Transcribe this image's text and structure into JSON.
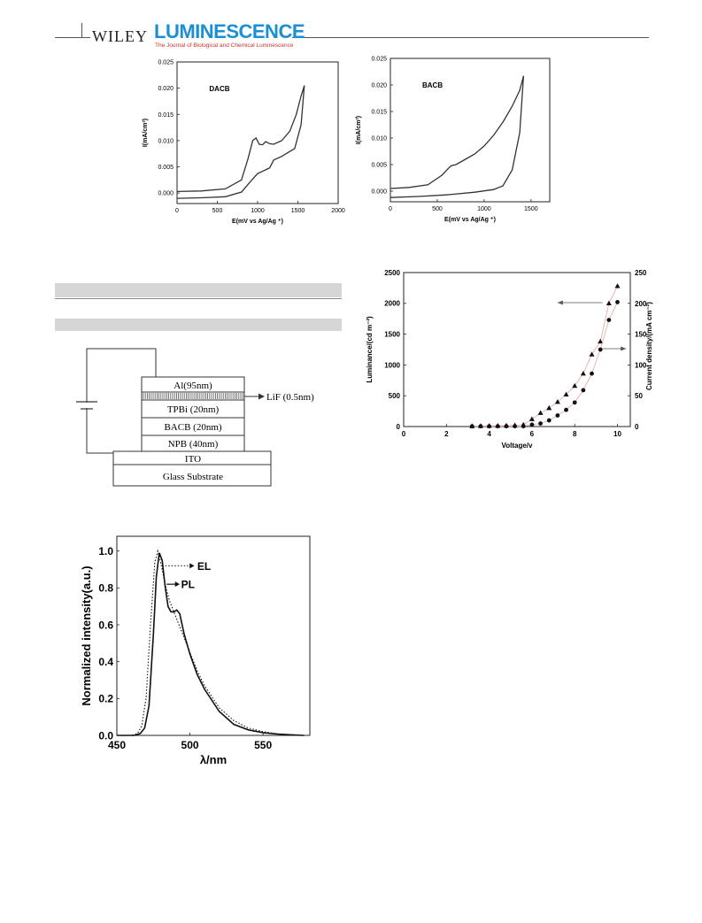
{
  "header": {
    "publisher": "WILEY",
    "journal": "LUMINESCENCE",
    "journal_subtitle": "The Journal of Biological and Chemical Luminescence"
  },
  "device": {
    "layers": [
      "Al(95nm)",
      "",
      "TPBi (20nm)",
      "BACB (20nm)",
      "NPB  (40nm)",
      "ITO",
      "Glass Substrate"
    ],
    "lif_label": "LiF (0.5nm)"
  },
  "chart_data": [
    {
      "type": "line",
      "label": "DACB",
      "xlabel": "E(mV vs Ag/Ag ⁺)",
      "ylabel": "I(mA/cm²)",
      "xlim": [
        0,
        2000
      ],
      "ylim": [
        -0.002,
        0.025
      ],
      "xticks": [
        "0",
        "500",
        "1000",
        "1500",
        "2000"
      ],
      "yticks": [
        "0.000",
        "0.005",
        "0.010",
        "0.015",
        "0.020",
        "0.025"
      ],
      "series": [
        {
          "x": [
            0,
            300,
            600,
            800,
            880,
            940,
            980,
            1020,
            1060,
            1100,
            1150,
            1200,
            1300,
            1400,
            1480,
            1540,
            1580
          ],
          "y": [
            0.0003,
            0.0004,
            0.0008,
            0.0025,
            0.0065,
            0.01,
            0.0105,
            0.0093,
            0.0092,
            0.0098,
            0.0094,
            0.0093,
            0.01,
            0.0118,
            0.015,
            0.0185,
            0.0205
          ]
        },
        {
          "x": [
            1580,
            1540,
            1460,
            1300,
            1200,
            1150,
            1000,
            900,
            800,
            600,
            300,
            0
          ],
          "y": [
            0.0205,
            0.013,
            0.0085,
            0.007,
            0.0063,
            0.0048,
            0.0037,
            0.002,
            0.0002,
            -0.0007,
            -0.0009,
            -0.001
          ]
        }
      ]
    },
    {
      "type": "line",
      "label": "BACB",
      "xlabel": "E(mV vs Ag/Ag ⁺)",
      "ylabel": "I(mA/cm²)",
      "xlim": [
        0,
        1700
      ],
      "ylim": [
        -0.002,
        0.025
      ],
      "xticks": [
        "0",
        "500",
        "1000",
        "1500"
      ],
      "yticks": [
        "0.000",
        "0.005",
        "0.010",
        "0.015",
        "0.020",
        "0.025"
      ],
      "series": [
        {
          "x": [
            0,
            200,
            400,
            550,
            620,
            650,
            700,
            800,
            900,
            1000,
            1100,
            1200,
            1300,
            1380,
            1420
          ],
          "y": [
            0.0005,
            0.0007,
            0.0012,
            0.003,
            0.0043,
            0.0048,
            0.005,
            0.006,
            0.007,
            0.0085,
            0.0105,
            0.013,
            0.016,
            0.019,
            0.0217
          ]
        },
        {
          "x": [
            1420,
            1380,
            1300,
            1200,
            1100,
            900,
            600,
            300,
            0
          ],
          "y": [
            0.0217,
            0.011,
            0.004,
            0.001,
            0.0003,
            -0.0002,
            -0.0007,
            -0.001,
            -0.0012
          ]
        }
      ]
    },
    {
      "type": "scatter",
      "xlabel": "Voltage/v",
      "ylabel": "Luminance/(cd m⁻²)",
      "ylabel_right": "Current density/(mA cm⁻²)",
      "xlim": [
        0,
        10.6
      ],
      "ylim": [
        0,
        2500
      ],
      "ylim_right": [
        0,
        250
      ],
      "xticks": [
        "0",
        "2",
        "4",
        "6",
        "8",
        "10"
      ],
      "yticks": [
        "0",
        "500",
        "1000",
        "1500",
        "2000",
        "2500"
      ],
      "yticks_right": [
        "0",
        "50",
        "100",
        "150",
        "200",
        "250"
      ],
      "series": [
        {
          "marker": "triangle",
          "axis": "right",
          "x": [
            3.2,
            3.6,
            4.0,
            4.4,
            4.8,
            5.2,
            5.6,
            6.0,
            6.4,
            6.8,
            7.2,
            7.6,
            8.0,
            8.4,
            8.8,
            9.2,
            9.6,
            10.0
          ],
          "y": [
            0.5,
            0.8,
            1.0,
            1.2,
            1.5,
            2,
            3,
            12,
            22,
            30,
            40,
            52,
            66,
            86,
            117,
            138,
            200,
            228
          ]
        },
        {
          "marker": "circle",
          "axis": "left",
          "x": [
            3.2,
            3.6,
            4.0,
            4.4,
            4.8,
            5.2,
            5.6,
            6.0,
            6.4,
            6.8,
            7.2,
            7.6,
            8.0,
            8.4,
            8.8,
            9.2,
            9.6,
            10.0
          ],
          "y": [
            5,
            5,
            5,
            5,
            5,
            5,
            5,
            30,
            50,
            100,
            180,
            270,
            390,
            590,
            860,
            1250,
            1730,
            2020
          ]
        }
      ]
    },
    {
      "type": "line",
      "xlabel": "λ/nm",
      "ylabel": "Normalized intensity(a.u.)",
      "xlim": [
        450,
        582
      ],
      "ylim": [
        0,
        1.08
      ],
      "xticks": [
        "450",
        "500",
        "550"
      ],
      "yticks": [
        "0.0",
        "0.2",
        "0.4",
        "0.6",
        "0.8",
        "1.0"
      ],
      "series": [
        {
          "name": "PL",
          "style": "solid",
          "x": [
            450,
            462,
            466,
            469,
            472,
            475,
            477,
            479,
            481,
            483,
            485,
            487,
            489,
            491,
            493,
            496,
            500,
            505,
            510,
            520,
            530,
            540,
            550,
            560,
            570,
            578
          ],
          "y": [
            0.0,
            0.0,
            0.01,
            0.04,
            0.16,
            0.55,
            0.86,
            0.99,
            0.95,
            0.81,
            0.7,
            0.67,
            0.67,
            0.68,
            0.66,
            0.55,
            0.44,
            0.33,
            0.25,
            0.13,
            0.06,
            0.03,
            0.015,
            0.007,
            0.003,
            0.0
          ]
        },
        {
          "name": "EL",
          "style": "dotted",
          "x": [
            450,
            460,
            464,
            467,
            470,
            473,
            476,
            478,
            480,
            483,
            486,
            490,
            495,
            500,
            505,
            510,
            520,
            530,
            540,
            550,
            560,
            570,
            578
          ],
          "y": [
            0.0,
            0.0,
            0.01,
            0.05,
            0.2,
            0.6,
            0.94,
            1.0,
            0.94,
            0.82,
            0.73,
            0.65,
            0.55,
            0.45,
            0.35,
            0.27,
            0.15,
            0.08,
            0.04,
            0.02,
            0.008,
            0.003,
            0.0
          ]
        }
      ]
    }
  ]
}
